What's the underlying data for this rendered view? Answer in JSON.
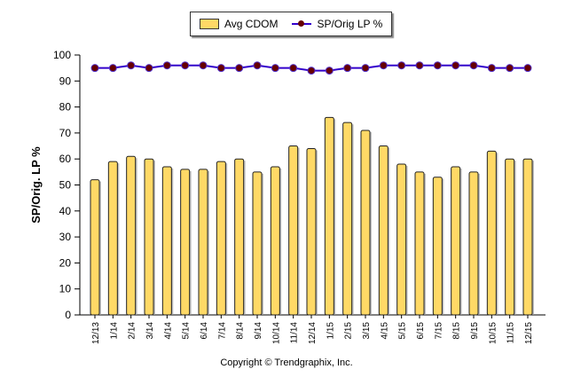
{
  "chart_data": {
    "type": "bar",
    "title": "",
    "xlabel": "",
    "ylabel": "SP/Orig. LP %",
    "ylim": [
      0,
      100
    ],
    "yticks": [
      0,
      10,
      20,
      30,
      40,
      50,
      60,
      70,
      80,
      90,
      100
    ],
    "grid": false,
    "legend_position": "top",
    "categories": [
      "12/13",
      "1/14",
      "2/14",
      "3/14",
      "4/14",
      "5/14",
      "6/14",
      "7/14",
      "8/14",
      "9/14",
      "10/14",
      "11/14",
      "12/14",
      "1/15",
      "2/15",
      "3/15",
      "4/15",
      "5/15",
      "6/15",
      "7/15",
      "8/15",
      "9/15",
      "10/15",
      "11/15",
      "12/15"
    ],
    "series": [
      {
        "name": "Avg CDOM",
        "type": "bar",
        "color": "#ffd966",
        "values": [
          52,
          59,
          61,
          60,
          57,
          56,
          56,
          59,
          60,
          55,
          57,
          65,
          64,
          76,
          74,
          71,
          65,
          58,
          55,
          53,
          57,
          55,
          63,
          60,
          60
        ]
      },
      {
        "name": "SP/Orig LP %",
        "type": "line",
        "color": "#3300cc",
        "marker_color": "#660000",
        "values": [
          95,
          95,
          96,
          95,
          96,
          96,
          96,
          95,
          95,
          96,
          95,
          95,
          94,
          94,
          95,
          95,
          96,
          96,
          96,
          96,
          96,
          96,
          95,
          95,
          95
        ]
      }
    ]
  },
  "footer": {
    "copyright": "Copyright © Trendgraphix, Inc."
  }
}
